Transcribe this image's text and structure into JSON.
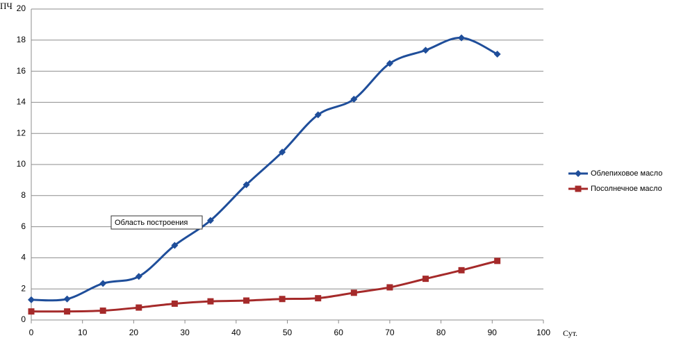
{
  "chart_data": {
    "type": "line",
    "y_label": "ПЧ",
    "x_label": "Сут.",
    "annotation": "Область построения",
    "x": [
      0,
      7,
      14,
      21,
      28,
      35,
      42,
      49,
      56,
      63,
      70,
      77,
      84,
      91
    ],
    "series": [
      {
        "name": "Облепиховое масло",
        "color": "#1f4e9a",
        "marker": "diamond",
        "values": [
          1.3,
          1.35,
          2.35,
          2.8,
          4.8,
          6.4,
          8.7,
          10.8,
          13.2,
          14.2,
          16.5,
          17.35,
          18.15,
          17.1
        ]
      },
      {
        "name": "Посолнечное масло",
        "color": "#a52a2a",
        "marker": "square",
        "values": [
          0.55,
          0.55,
          0.6,
          0.8,
          1.05,
          1.2,
          1.25,
          1.35,
          1.4,
          1.75,
          2.1,
          2.65,
          3.2,
          3.8
        ]
      }
    ],
    "xlim": [
      0,
      100
    ],
    "xticks": [
      0,
      10,
      20,
      30,
      40,
      50,
      60,
      70,
      80,
      90,
      100
    ],
    "ylim": [
      0,
      20
    ],
    "yticks": [
      0,
      2,
      4,
      6,
      8,
      10,
      12,
      14,
      16,
      18,
      20
    ],
    "grid": true,
    "smooth": true,
    "legend": "right"
  }
}
